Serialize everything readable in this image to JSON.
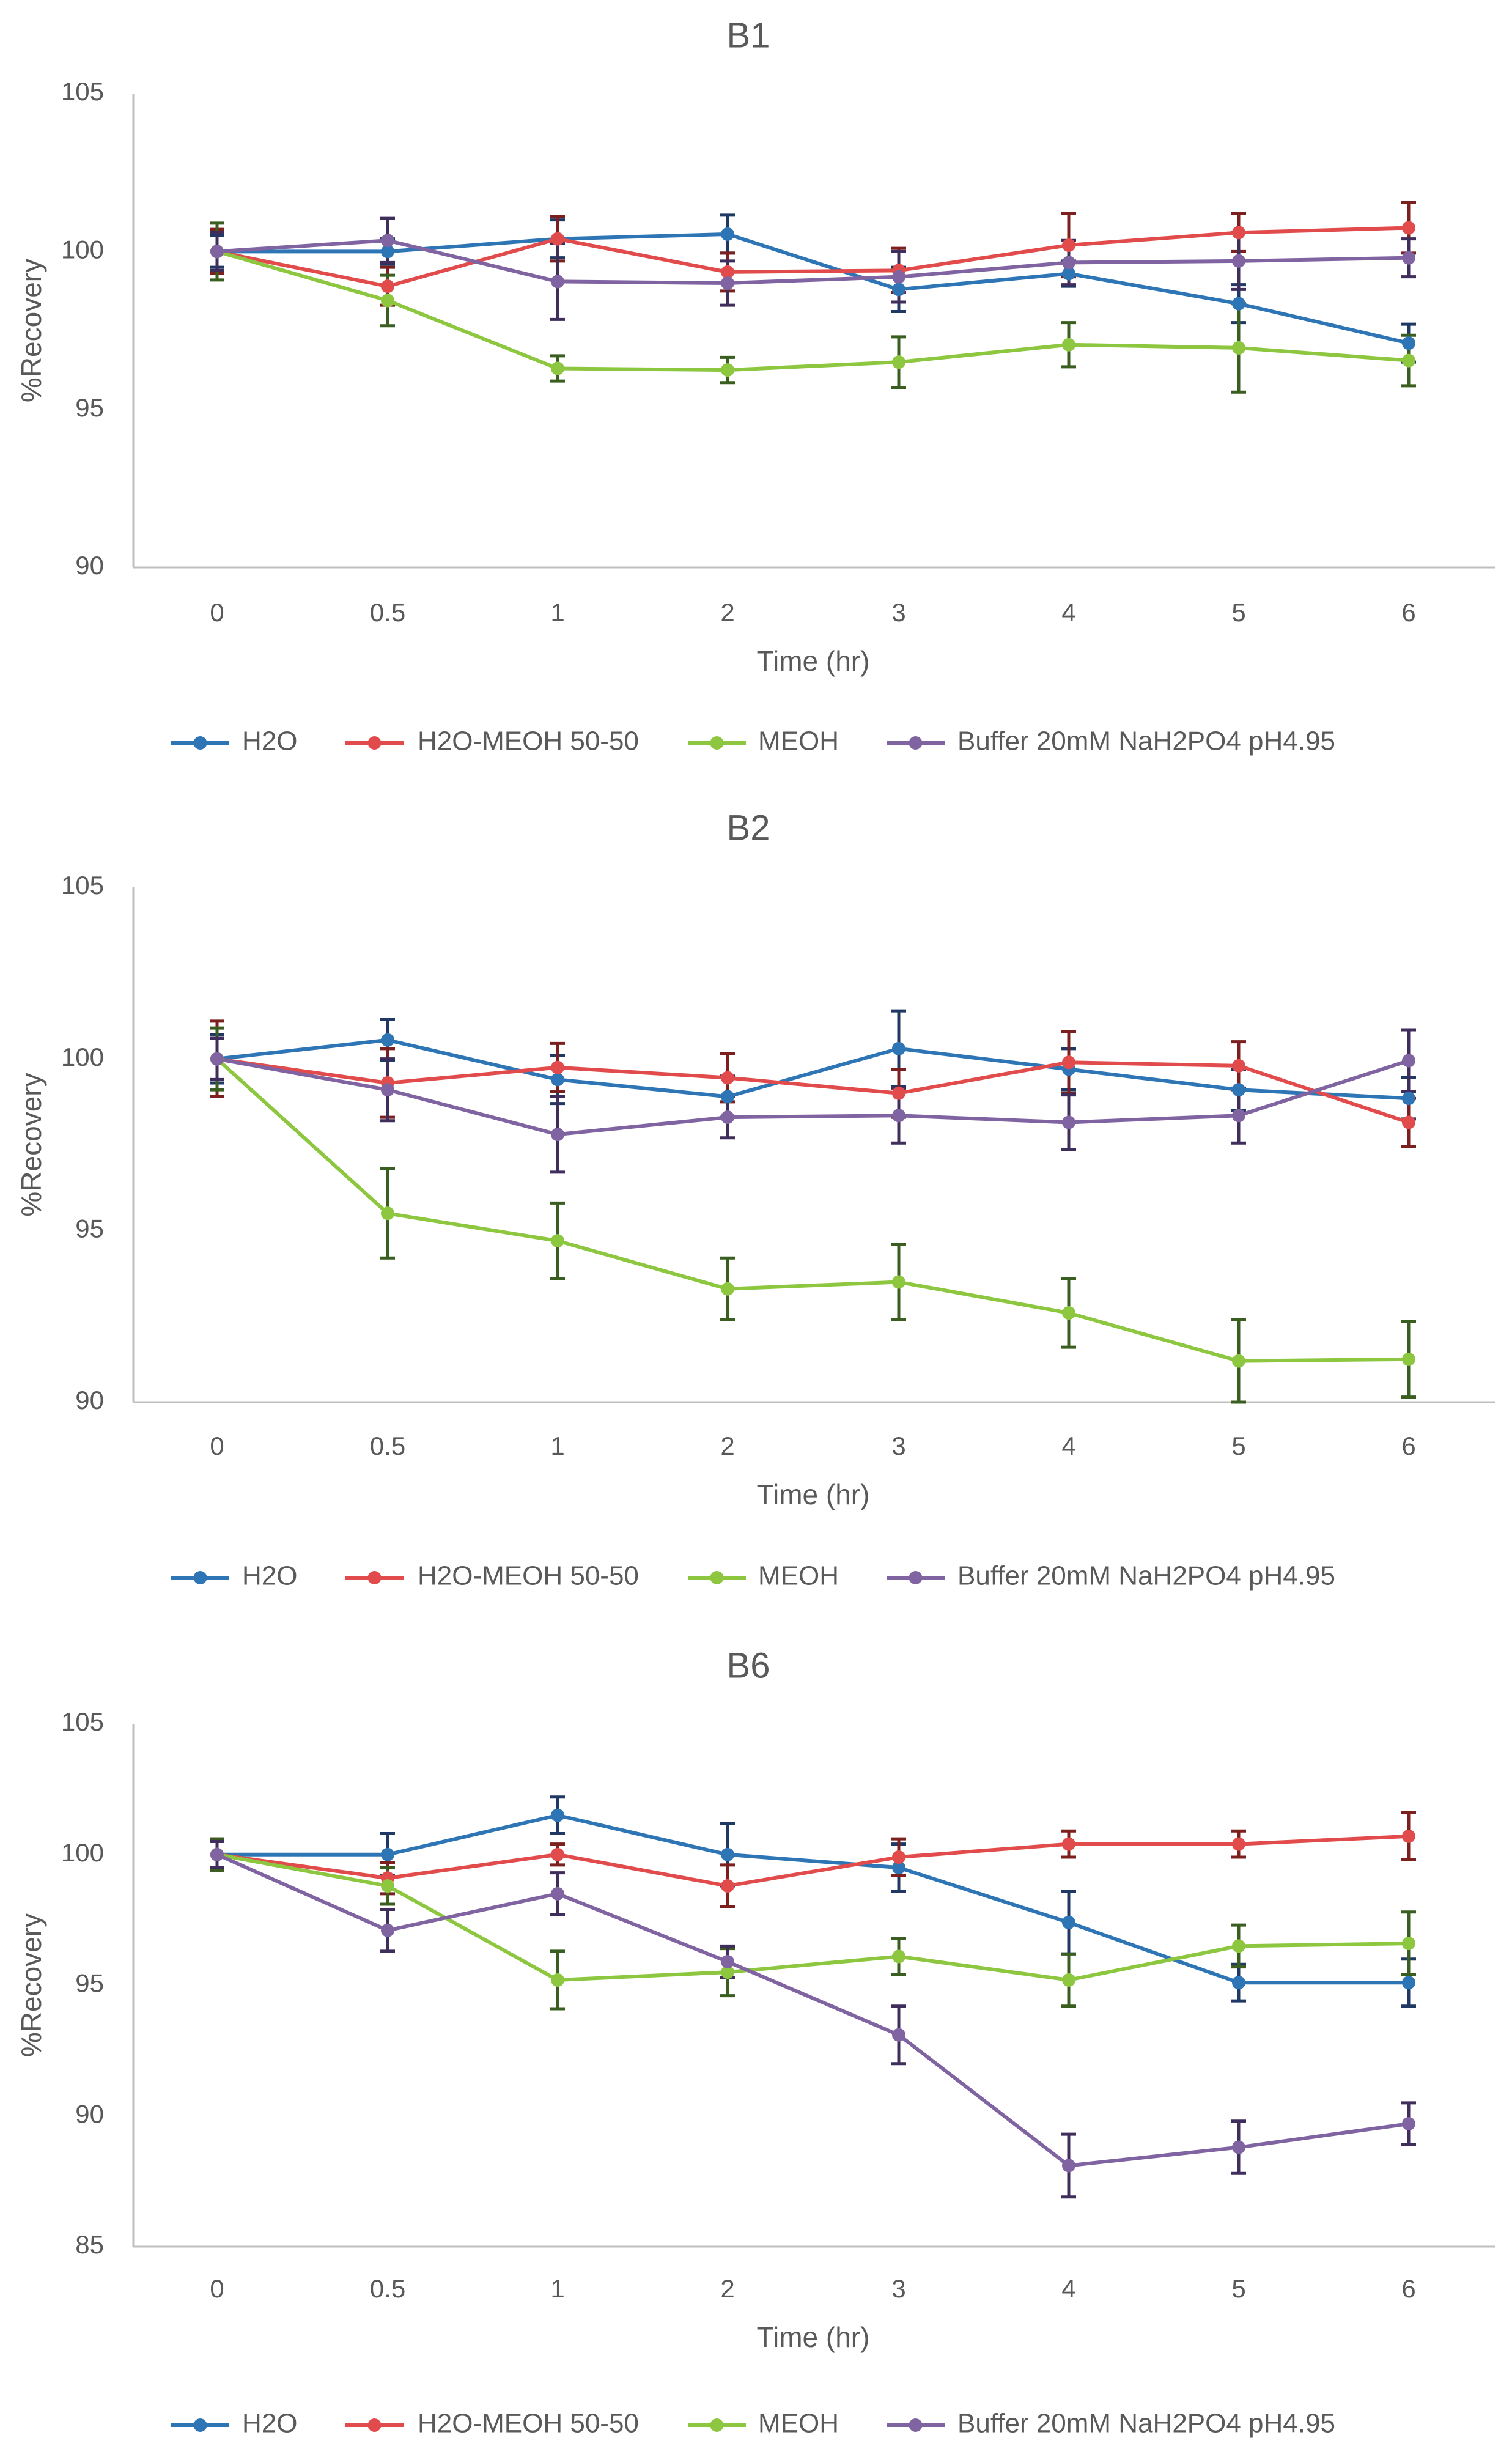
{
  "chart_data": [
    {
      "type": "line",
      "title": "B1",
      "xlabel": "Time (hr)",
      "ylabel": "%Recovery",
      "categories": [
        "0",
        "0.5",
        "1",
        "2",
        "3",
        "4",
        "5",
        "6"
      ],
      "ylim": [
        90,
        105
      ],
      "yticks": [
        "90",
        "95",
        "100",
        "105"
      ],
      "grid": false,
      "legend_position": "bottom",
      "series": [
        {
          "name": "H2O",
          "color": "#2E75B6",
          "error_color": "#1F3864",
          "values": [
            100,
            100,
            100.4,
            100.55,
            98.8,
            99.3,
            98.35,
            97.1
          ],
          "errors": [
            0.5,
            0.4,
            0.6,
            0.6,
            0.7,
            0.4,
            0.6,
            0.6
          ]
        },
        {
          "name": "H2O-MEOH 50-50",
          "color": "#E24B4B",
          "error_color": "#7B1F1F",
          "values": [
            100,
            98.9,
            100.4,
            99.35,
            99.4,
            100.2,
            100.6,
            100.75
          ],
          "errors": [
            0.7,
            0.6,
            0.7,
            0.6,
            0.7,
            1.0,
            0.6,
            0.8
          ]
        },
        {
          "name": "MEOH",
          "color": "#8DC63F",
          "error_color": "#3A5E1F",
          "values": [
            100,
            98.45,
            96.3,
            96.25,
            96.5,
            97.05,
            96.95,
            96.55
          ],
          "errors": [
            0.9,
            0.8,
            0.4,
            0.4,
            0.8,
            0.7,
            1.4,
            0.8
          ]
        },
        {
          "name": "Buffer 20mM NaH2PO4 pH4.95",
          "color": "#8064A2",
          "error_color": "#3F2D5C",
          "values": [
            100,
            100.35,
            99.05,
            99.0,
            99.2,
            99.65,
            99.7,
            99.8
          ],
          "errors": [
            0.6,
            0.7,
            1.2,
            0.7,
            0.8,
            0.7,
            0.9,
            0.6
          ]
        }
      ]
    },
    {
      "type": "line",
      "title": "B2",
      "xlabel": "Time (hr)",
      "ylabel": "%Recovery",
      "categories": [
        "0",
        "0.5",
        "1",
        "2",
        "3",
        "4",
        "5",
        "6"
      ],
      "ylim": [
        90,
        105
      ],
      "yticks": [
        "90",
        "95",
        "100",
        "105"
      ],
      "grid": false,
      "legend_position": "bottom",
      "series": [
        {
          "name": "H2O",
          "color": "#2E75B6",
          "error_color": "#1F3864",
          "values": [
            100,
            100.55,
            99.4,
            98.9,
            100.3,
            99.7,
            99.1,
            98.85
          ],
          "errors": [
            0.7,
            0.6,
            0.7,
            0.6,
            1.1,
            0.6,
            0.6,
            0.6
          ]
        },
        {
          "name": "H2O-MEOH 50-50",
          "color": "#E24B4B",
          "error_color": "#7B1F1F",
          "values": [
            100,
            99.3,
            99.75,
            99.45,
            99.0,
            99.9,
            99.8,
            98.15
          ],
          "errors": [
            1.1,
            1.0,
            0.7,
            0.7,
            0.7,
            0.9,
            0.7,
            0.7
          ]
        },
        {
          "name": "MEOH",
          "color": "#8DC63F",
          "error_color": "#3A5E1F",
          "values": [
            100,
            95.5,
            94.7,
            93.3,
            93.5,
            92.6,
            91.2,
            91.25
          ],
          "errors": [
            0.9,
            1.3,
            1.1,
            0.9,
            1.1,
            1.0,
            1.2,
            1.1
          ]
        },
        {
          "name": "Buffer 20mM NaH2PO4 pH4.95",
          "color": "#8064A2",
          "error_color": "#3F2D5C",
          "values": [
            100,
            99.1,
            97.8,
            98.3,
            98.35,
            98.15,
            98.35,
            99.95
          ],
          "errors": [
            0.6,
            0.9,
            1.1,
            0.6,
            0.8,
            0.8,
            0.8,
            0.9
          ]
        }
      ]
    },
    {
      "type": "line",
      "title": "B6",
      "xlabel": "Time (hr)",
      "ylabel": "%Recovery",
      "categories": [
        "0",
        "0.5",
        "1",
        "2",
        "3",
        "4",
        "5",
        "6"
      ],
      "ylim": [
        85,
        105
      ],
      "yticks": [
        "85",
        "90",
        "95",
        "100",
        "105"
      ],
      "grid": false,
      "legend_position": "bottom",
      "series": [
        {
          "name": "H2O",
          "color": "#2E75B6",
          "error_color": "#1F3864",
          "values": [
            100,
            100,
            101.5,
            100,
            99.5,
            97.4,
            95.1,
            95.1
          ],
          "errors": [
            0.5,
            0.8,
            0.7,
            1.2,
            0.9,
            1.2,
            0.7,
            0.9
          ]
        },
        {
          "name": "H2O-MEOH 50-50",
          "color": "#E24B4B",
          "error_color": "#7B1F1F",
          "values": [
            100,
            99.1,
            100,
            98.8,
            99.9,
            100.4,
            100.4,
            100.7
          ],
          "errors": [
            0.6,
            0.6,
            0.4,
            0.8,
            0.7,
            0.5,
            0.5,
            0.9
          ]
        },
        {
          "name": "MEOH",
          "color": "#8DC63F",
          "error_color": "#3A5E1F",
          "values": [
            100,
            98.8,
            95.2,
            95.5,
            96.1,
            95.2,
            96.5,
            96.6
          ],
          "errors": [
            0.6,
            0.7,
            1.1,
            0.9,
            0.7,
            1.0,
            0.8,
            1.2
          ]
        },
        {
          "name": "Buffer 20mM NaH2PO4 pH4.95",
          "color": "#8064A2",
          "error_color": "#3F2D5C",
          "values": [
            100,
            97.1,
            98.5,
            95.9,
            93.1,
            88.1,
            88.8,
            89.7
          ],
          "errors": [
            0.5,
            0.8,
            0.8,
            0.6,
            1.1,
            1.2,
            1.0,
            0.8
          ]
        }
      ]
    }
  ]
}
